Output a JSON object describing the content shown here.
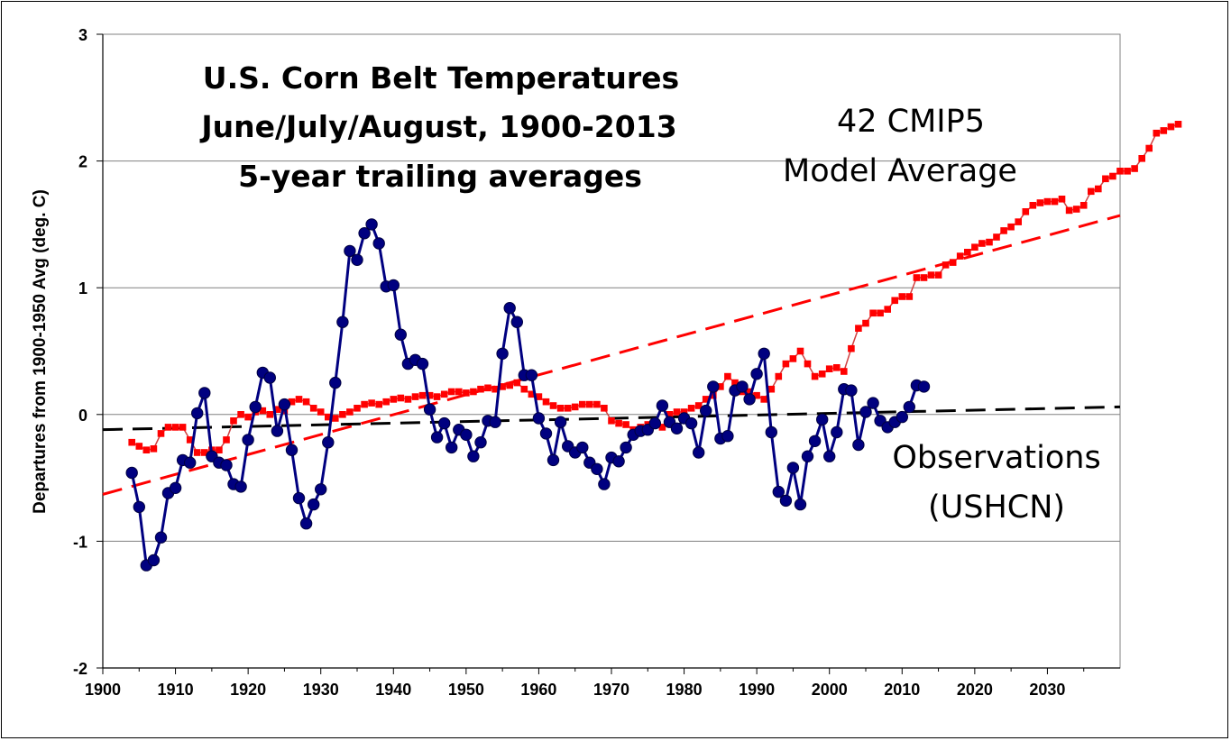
{
  "chart_data": {
    "type": "line",
    "title_lines": [
      "U.S. Corn Belt Temperatures",
      "June/July/August, 1900-2013",
      "5-year trailing averages"
    ],
    "ylabel": "Departures from 1900-1950 Avg (deg. C)",
    "xlabel": "",
    "xlim": [
      1900,
      2040
    ],
    "ylim": [
      -2,
      3
    ],
    "x_ticks": [
      "1900",
      "1910",
      "1920",
      "1930",
      "1940",
      "1950",
      "1960",
      "1970",
      "1980",
      "1990",
      "2000",
      "2010",
      "2020",
      "2030"
    ],
    "y_ticks": [
      "-2",
      "-1",
      "0",
      "1",
      "2",
      "3"
    ],
    "grid": "horizontal major",
    "annotations": [
      {
        "id": "model",
        "lines": [
          "42 CMIP5",
          "Model Average"
        ]
      },
      {
        "id": "obs",
        "lines": [
          "Observations",
          "(USHCN)"
        ]
      }
    ],
    "colors": {
      "model": "#ff0000",
      "observations": "#000080",
      "obs_trend": "#000000",
      "model_trend": "#ff0000"
    },
    "series": [
      {
        "id": "model",
        "name": "42 CMIP5 Model Average",
        "x_start": 1904,
        "values": [
          -0.22,
          -0.25,
          -0.28,
          -0.27,
          -0.15,
          -0.1,
          -0.1,
          -0.1,
          -0.2,
          -0.3,
          -0.3,
          -0.28,
          -0.28,
          -0.2,
          -0.05,
          0.0,
          -0.02,
          0.02,
          0.03,
          0.0,
          0.04,
          0.03,
          0.1,
          0.12,
          0.1,
          0.05,
          0.02,
          -0.02,
          -0.03,
          0.0,
          0.02,
          0.05,
          0.08,
          0.09,
          0.08,
          0.1,
          0.12,
          0.13,
          0.12,
          0.14,
          0.15,
          0.15,
          0.14,
          0.16,
          0.18,
          0.18,
          0.17,
          0.18,
          0.2,
          0.21,
          0.2,
          0.22,
          0.23,
          0.25,
          0.2,
          0.16,
          0.14,
          0.1,
          0.07,
          0.05,
          0.05,
          0.06,
          0.08,
          0.08,
          0.08,
          0.05,
          -0.05,
          -0.07,
          -0.08,
          -0.12,
          -0.1,
          -0.08,
          -0.07,
          -0.1,
          0.0,
          0.02,
          0.02,
          0.05,
          0.07,
          0.12,
          0.15,
          0.22,
          0.3,
          0.25,
          0.18,
          0.18,
          0.15,
          0.12,
          0.2,
          0.3,
          0.4,
          0.44,
          0.5,
          0.4,
          0.3,
          0.32,
          0.36,
          0.37,
          0.34,
          0.52,
          0.68,
          0.72,
          0.8,
          0.8,
          0.83,
          0.9,
          0.93,
          0.93,
          1.08,
          1.08,
          1.1,
          1.1,
          1.18,
          1.2,
          1.25,
          1.28,
          1.32,
          1.35,
          1.36,
          1.4,
          1.45,
          1.48,
          1.52,
          1.6,
          1.65,
          1.67,
          1.68,
          1.68,
          1.7,
          1.61,
          1.62,
          1.65,
          1.76,
          1.78,
          1.86,
          1.88,
          1.92,
          1.92,
          1.94,
          2.02,
          2.1,
          2.22,
          2.24,
          2.27,
          2.29
        ]
      },
      {
        "id": "observations",
        "name": "Observations (USHCN)",
        "x_start": 1904,
        "values": [
          -0.46,
          -0.73,
          -1.19,
          -1.15,
          -0.97,
          -0.62,
          -0.58,
          -0.36,
          -0.38,
          0.01,
          0.17,
          -0.33,
          -0.38,
          -0.4,
          -0.55,
          -0.57,
          -0.2,
          0.06,
          0.33,
          0.29,
          -0.13,
          0.08,
          -0.28,
          -0.66,
          -0.86,
          -0.71,
          -0.59,
          -0.22,
          0.25,
          0.73,
          1.29,
          1.22,
          1.43,
          1.5,
          1.35,
          1.01,
          1.02,
          0.63,
          0.4,
          0.43,
          0.4,
          0.04,
          -0.18,
          -0.07,
          -0.26,
          -0.12,
          -0.16,
          -0.33,
          -0.22,
          -0.05,
          -0.06,
          0.48,
          0.84,
          0.73,
          0.31,
          0.31,
          -0.03,
          -0.15,
          -0.36,
          -0.06,
          -0.25,
          -0.3,
          -0.26,
          -0.38,
          -0.43,
          -0.55,
          -0.34,
          -0.37,
          -0.26,
          -0.16,
          -0.13,
          -0.12,
          -0.07,
          0.07,
          -0.06,
          -0.11,
          -0.03,
          -0.07,
          -0.3,
          0.03,
          0.22,
          -0.19,
          -0.17,
          0.19,
          0.22,
          0.12,
          0.32,
          0.48,
          -0.14,
          -0.61,
          -0.68,
          -0.42,
          -0.71,
          -0.33,
          -0.21,
          -0.04,
          -0.33,
          -0.14,
          0.2,
          0.19,
          -0.24,
          0.02,
          0.09,
          -0.05,
          -0.1,
          -0.06,
          -0.02,
          0.06,
          0.23,
          0.22
        ]
      }
    ],
    "trends": [
      {
        "id": "model_trend",
        "style": "dashed",
        "x": [
          1900,
          2040
        ],
        "y": [
          -0.63,
          1.57
        ]
      },
      {
        "id": "obs_trend",
        "style": "dashed",
        "x": [
          1900,
          2040
        ],
        "y": [
          -0.12,
          0.06
        ]
      }
    ]
  }
}
